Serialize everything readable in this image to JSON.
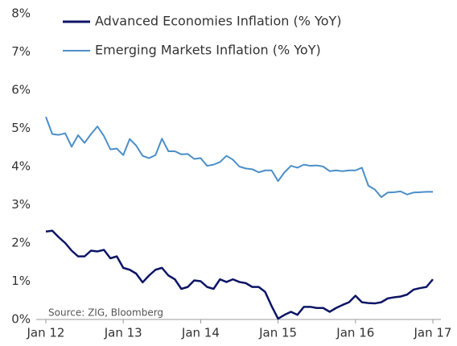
{
  "chart_data": {
    "type": "line",
    "categories": [
      "Jan 12",
      null,
      null,
      null,
      null,
      null,
      null,
      null,
      null,
      null,
      null,
      null,
      "Jan 13",
      null,
      null,
      null,
      null,
      null,
      null,
      null,
      null,
      null,
      null,
      null,
      "Jan 14",
      null,
      null,
      null,
      null,
      null,
      null,
      null,
      null,
      null,
      null,
      null,
      "Jan 15",
      null,
      null,
      null,
      null,
      null,
      null,
      null,
      null,
      null,
      null,
      null,
      "Jan 16",
      null,
      null,
      null,
      null,
      null,
      null,
      null,
      null,
      null,
      null,
      null,
      "Jan 17"
    ],
    "series": [
      {
        "name": "Advanced Economies Inflation (% YoY)",
        "color": "#0c1565",
        "values": [
          2.3,
          2.32,
          2.15,
          2.0,
          1.8,
          1.65,
          1.65,
          1.8,
          1.78,
          1.82,
          1.6,
          1.65,
          1.35,
          1.3,
          1.2,
          0.97,
          1.15,
          1.3,
          1.35,
          1.15,
          1.05,
          0.8,
          0.85,
          1.02,
          1.0,
          0.85,
          0.8,
          1.05,
          0.98,
          1.05,
          0.98,
          0.95,
          0.85,
          0.85,
          0.72,
          0.35,
          0.02,
          0.12,
          0.2,
          0.12,
          0.33,
          0.33,
          0.3,
          0.3,
          0.2,
          0.3,
          0.38,
          0.45,
          0.62,
          0.45,
          0.43,
          0.42,
          0.45,
          0.55,
          0.58,
          0.6,
          0.65,
          0.78,
          0.82,
          0.85,
          1.05
        ]
      },
      {
        "name": "Emerging Markets Inflation (% YoY)",
        "color": "#4b8fc8",
        "values": [
          5.3,
          4.85,
          4.83,
          4.87,
          4.52,
          4.82,
          4.62,
          4.85,
          5.05,
          4.8,
          4.45,
          4.47,
          4.3,
          4.72,
          4.55,
          4.28,
          4.22,
          4.3,
          4.73,
          4.4,
          4.4,
          4.32,
          4.33,
          4.2,
          4.22,
          4.02,
          4.05,
          4.12,
          4.28,
          4.18,
          4.0,
          3.95,
          3.93,
          3.85,
          3.9,
          3.9,
          3.62,
          3.85,
          4.02,
          3.97,
          4.05,
          4.02,
          4.03,
          4.0,
          3.88,
          3.9,
          3.88,
          3.9,
          3.9,
          3.97,
          3.5,
          3.4,
          3.2,
          3.32,
          3.33,
          3.35,
          3.27,
          3.32,
          3.33,
          3.34,
          3.34
        ]
      }
    ],
    "ylim": [
      0,
      8
    ],
    "yticks": [
      {
        "value": 0,
        "label": "0%"
      },
      {
        "value": 1,
        "label": "1%"
      },
      {
        "value": 2,
        "label": "2%"
      },
      {
        "value": 3,
        "label": "3%"
      },
      {
        "value": 4,
        "label": "4%"
      },
      {
        "value": 5,
        "label": "5%"
      },
      {
        "value": 6,
        "label": "6%"
      },
      {
        "value": 7,
        "label": "7%"
      },
      {
        "value": 8,
        "label": "8%"
      }
    ],
    "annotation": "Source: ZIG, Bloomberg",
    "grid": false,
    "legend": "top-left"
  }
}
